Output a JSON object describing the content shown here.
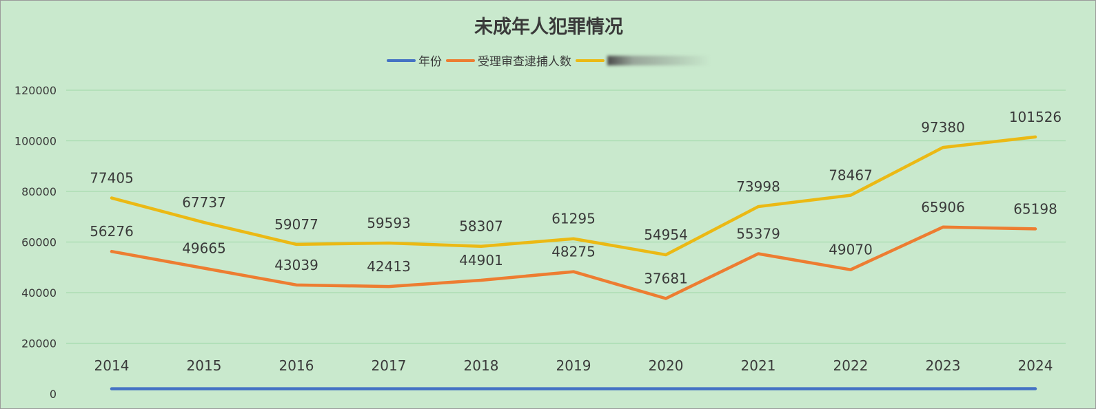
{
  "chart_data": {
    "type": "line",
    "title": "未成年人犯罪情况",
    "categories": [
      "2014",
      "2015",
      "2016",
      "2017",
      "2018",
      "2019",
      "2020",
      "2021",
      "2022",
      "2023",
      "2024"
    ],
    "ylim": [
      0,
      120000
    ],
    "yticks": [
      "0",
      "20000",
      "40000",
      "60000",
      "80000",
      "100000",
      "120000"
    ],
    "grid": true,
    "legend_position": "top",
    "series": [
      {
        "name": "年份",
        "color": "#4472c4",
        "values": [
          2014,
          2015,
          2016,
          2017,
          2018,
          2019,
          2020,
          2021,
          2022,
          2023,
          2024
        ],
        "labels": [
          "2014",
          "2015",
          "2016",
          "2017",
          "2018",
          "2019",
          "2020",
          "2021",
          "2022",
          "2023",
          "2024"
        ]
      },
      {
        "name": "受理审查逮捕人数",
        "color": "#ed7d31",
        "values": [
          56276,
          49665,
          43039,
          42413,
          44901,
          48275,
          37681,
          55379,
          49070,
          65906,
          65198
        ],
        "labels": [
          "56276",
          "49665",
          "43039",
          "42413",
          "44901",
          "48275",
          "37681",
          "55379",
          "49070",
          "65906",
          "65198"
        ]
      },
      {
        "name": "",
        "legend_obscured": true,
        "color": "#ebb914",
        "values": [
          77405,
          67737,
          59077,
          59593,
          58307,
          61295,
          54954,
          73998,
          78467,
          97380,
          101526
        ],
        "labels": [
          "77405",
          "67737",
          "59077",
          "59593",
          "58307",
          "61295",
          "54954",
          "73998",
          "78467",
          "97380",
          "101526"
        ]
      }
    ],
    "colors": {
      "background": "#c9e9cd",
      "grid": "#a8dcb0",
      "text": "#3a3a3a"
    }
  }
}
